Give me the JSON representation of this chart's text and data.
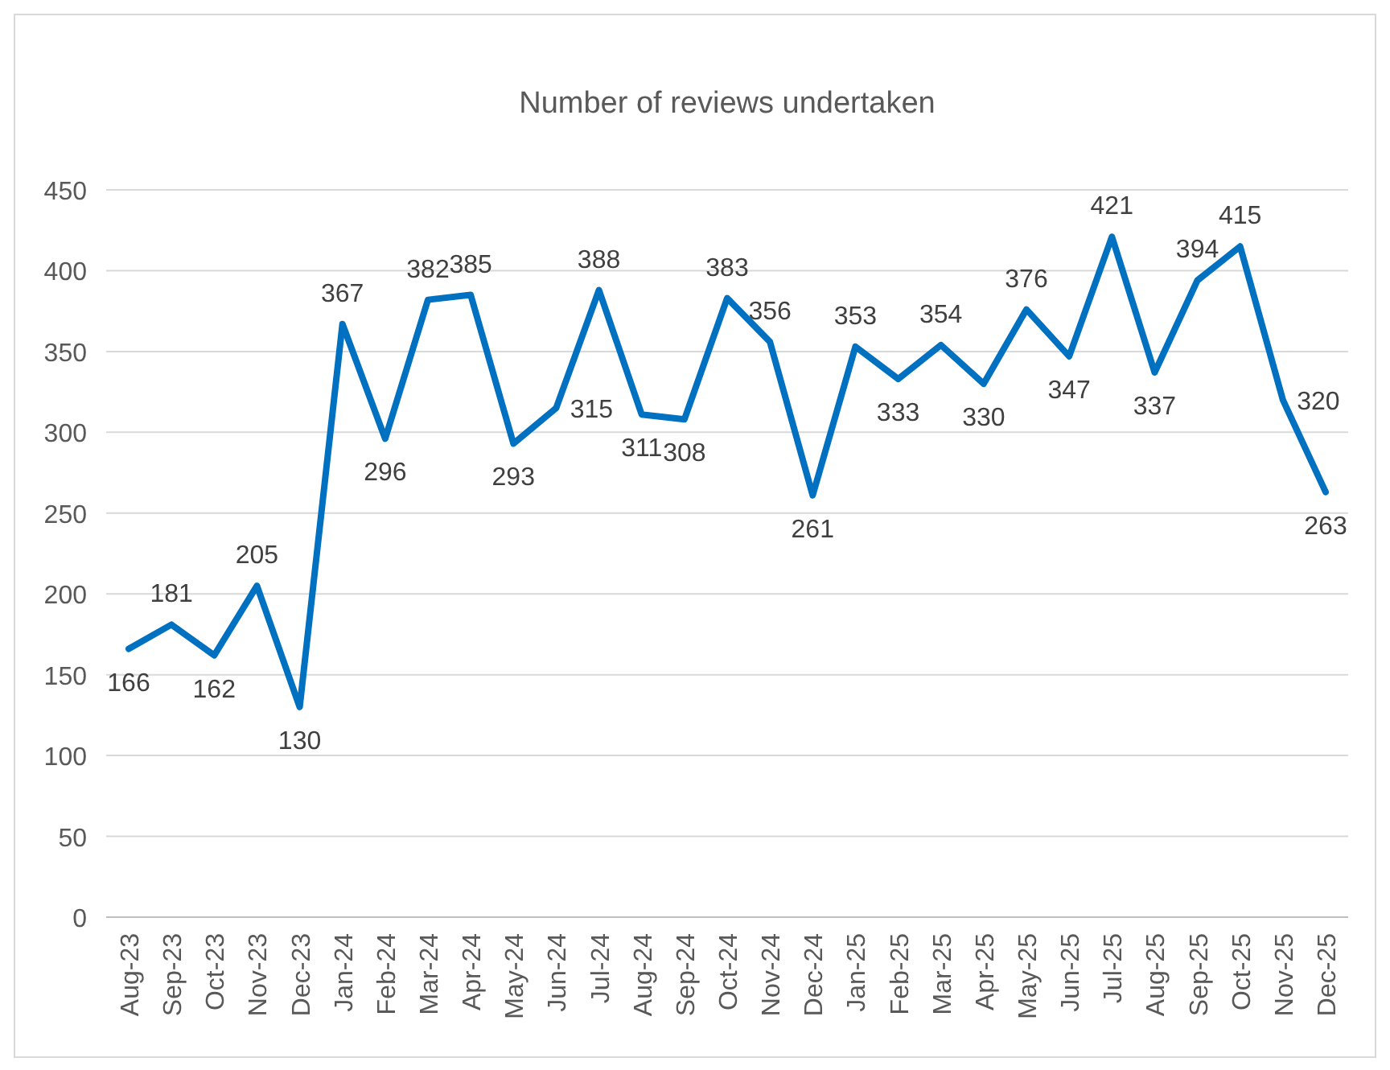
{
  "chart_data": {
    "type": "line",
    "title": "Number of reviews undertaken",
    "categories": [
      "Aug-23",
      "Sep-23",
      "Oct-23",
      "Nov-23",
      "Dec-23",
      "Jan-24",
      "Feb-24",
      "Mar-24",
      "Apr-24",
      "May-24",
      "Jun-24",
      "Jul-24",
      "Aug-24",
      "Sep-24",
      "Oct-24",
      "Nov-24",
      "Dec-24",
      "Jan-25",
      "Feb-25",
      "Mar-25",
      "Apr-25",
      "May-25",
      "Jun-25",
      "Jul-25",
      "Aug-25",
      "Sep-25",
      "Oct-25",
      "Nov-25",
      "Dec-25"
    ],
    "series": [
      {
        "color": "#0070c0",
        "values": [
          166,
          181,
          162,
          205,
          130,
          367,
          296,
          382,
          385,
          293,
          315,
          388,
          311,
          308,
          383,
          356,
          261,
          353,
          333,
          354,
          330,
          376,
          347,
          421,
          337,
          394,
          415,
          320,
          263
        ]
      }
    ],
    "ylim": [
      0,
      450
    ],
    "yticks": [
      0,
      50,
      100,
      150,
      200,
      250,
      300,
      350,
      400,
      450
    ],
    "grid": "y",
    "data_labels": true,
    "marker": "none",
    "line_style": "solid"
  }
}
